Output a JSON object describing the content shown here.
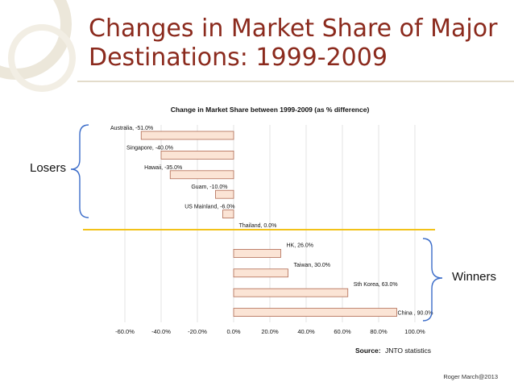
{
  "slide": {
    "title": "Changes in Market Share of Major Destinations: 1999-2009",
    "losers_label": "Losers",
    "winners_label": "Winners",
    "footer_credit": "Roger March@2013",
    "source_label": "Source:",
    "source_text": "JNTO statistics"
  },
  "colors": {
    "title": "#8b2a1d",
    "bar_fill": "#fbe4d5",
    "bar_stroke": "#b06a52",
    "divider": "#f2c218",
    "bracket": "#3b6cc9"
  },
  "chart_data": {
    "type": "bar",
    "orientation": "horizontal",
    "title": "Change in Market Share between 1999-2009 (as % difference)",
    "xlabel": "",
    "ylabel": "",
    "xlim": [
      -60,
      100
    ],
    "xticks": [
      "-60.0%",
      "-40.0%",
      "-20.0%",
      "0.0%",
      "20.0%",
      "40.0%",
      "60.0%",
      "80.0%",
      "100.0%"
    ],
    "categories": [
      "Australia",
      "Singapore",
      "Hawaii",
      "Guam",
      "US Mainland",
      "Thailand",
      "HK",
      "Taiwan",
      "Sth Korea",
      "China"
    ],
    "values": [
      -51,
      -40,
      -35,
      -10,
      -6,
      0,
      26,
      30,
      63,
      90
    ],
    "data_labels": [
      "Australia, -51.0%",
      "Singapore, -40.0%",
      "Hawaii, -35.0%",
      "Guam, -10.0%",
      "US Mainland, -6.0%",
      "Thailand, 0.0%",
      "HK, 26.0%",
      "Taiwan, 30.0%",
      "Sth Korea, 63.0%",
      "China , 90.0%"
    ],
    "grid": true,
    "legend": "none"
  }
}
